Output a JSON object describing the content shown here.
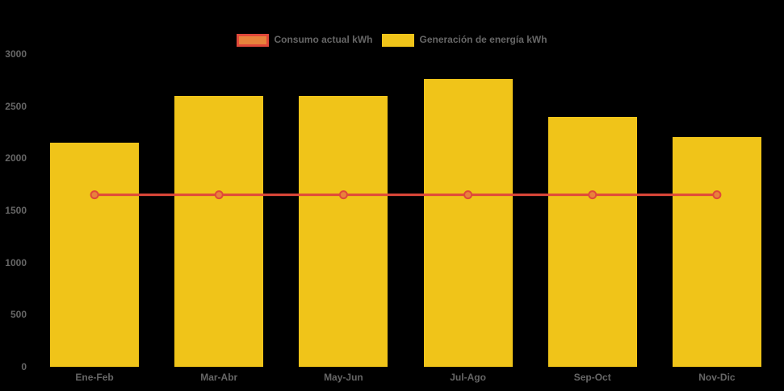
{
  "chart_data": {
    "type": "bar",
    "title": "",
    "categories": [
      "Ene-Feb",
      "Mar-Abr",
      "May-Jun",
      "Jul-Ago",
      "Sep-Oct",
      "Nov-Dic"
    ],
    "series": [
      {
        "name": "Consumo actual kWh",
        "type": "line",
        "values": [
          1650,
          1650,
          1650,
          1650,
          1650,
          1650
        ],
        "line_color": "#e0483a",
        "point_fill": "#e8823b",
        "point_border": "#e0483a"
      },
      {
        "name": "Generación de energía kWh",
        "type": "bar",
        "values": [
          2150,
          2600,
          2600,
          2760,
          2400,
          2200
        ],
        "color": "#f0c419"
      }
    ],
    "xlabel": "",
    "ylabel": "",
    "ylim": [
      0,
      3000
    ],
    "ytick_step": 500,
    "yticks": [
      "0",
      "500",
      "1000",
      "1500",
      "2000",
      "2500",
      "3000"
    ],
    "legend_position": "top",
    "grid": false,
    "background": "#000000",
    "text_color": "#666666"
  }
}
